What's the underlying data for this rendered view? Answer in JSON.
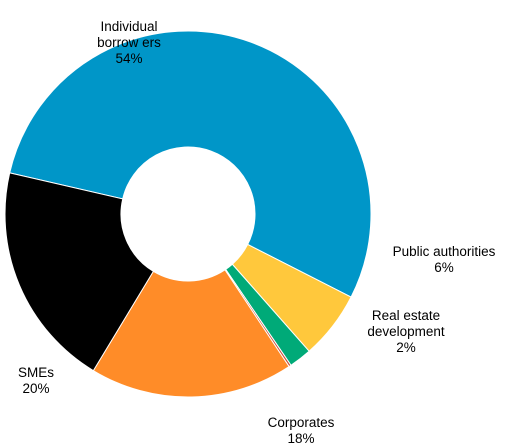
{
  "chart_data": {
    "type": "pie",
    "donut": true,
    "start_angle_deg": 167,
    "slices": [
      {
        "key": "individual",
        "label_lines": [
          "Individual",
          "borrow ers"
        ],
        "value_label": "54%",
        "value": 54,
        "color": "#0096C8"
      },
      {
        "key": "public",
        "label_lines": [
          "Public authorities"
        ],
        "value_label": "6%",
        "value": 6,
        "color": "#FFC83C"
      },
      {
        "key": "realestate",
        "label_lines": [
          "Real estate",
          "development"
        ],
        "value_label": "2%",
        "value": 2,
        "color": "#00AA78"
      },
      {
        "key": "other",
        "label_lines": [],
        "value_label": "",
        "value": 0.2,
        "color": "#C8503C"
      },
      {
        "key": "corporates",
        "label_lines": [
          "Corporates"
        ],
        "value_label": "18%",
        "value": 18,
        "color": "#FF8C28"
      },
      {
        "key": "smes",
        "label_lines": [
          "SMEs"
        ],
        "value_label": "20%",
        "value": 20,
        "color": "#000000"
      }
    ]
  }
}
